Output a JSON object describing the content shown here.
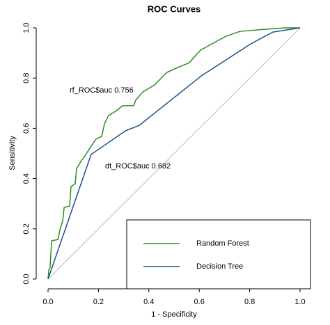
{
  "chart_data": {
    "type": "line",
    "title": "ROC Curves",
    "x_label": "1 - Specificity",
    "y_label": "Sensitivity",
    "xlim": [
      0,
      1
    ],
    "ylim": [
      0,
      1
    ],
    "xticks": [
      {
        "value": 0,
        "label": "0.0"
      },
      0.2,
      0.4,
      0.6,
      0.8,
      {
        "value": 1,
        "label": "1.0"
      }
    ],
    "yticks": [
      {
        "value": 0,
        "label": "0.0"
      },
      0.2,
      0.4,
      0.6,
      0.8,
      {
        "value": 1,
        "label": "1.0"
      }
    ],
    "annotations": [
      {
        "text": "rf_ROC$auc  0.756",
        "color": "#2e8b22"
      },
      {
        "text": "dt_ROC$auc  0.682",
        "color": "#1f4e8c"
      }
    ],
    "series": [
      {
        "name": "Random Forest",
        "color": "#2e8b22",
        "x": [
          0,
          0.003,
          0.008,
          0.014,
          0.04,
          0.047,
          0.058,
          0.064,
          0.086,
          0.091,
          0.108,
          0.113,
          0.13,
          0.146,
          0.168,
          0.19,
          0.213,
          0.224,
          0.24,
          0.268,
          0.296,
          0.34,
          0.348,
          0.376,
          0.423,
          0.472,
          0.522,
          0.56,
          0.605,
          0.666,
          0.707,
          0.762,
          0.859,
          0.942,
          1
        ],
        "values": [
          0,
          0.036,
          0.044,
          0.152,
          0.158,
          0.197,
          0.23,
          0.285,
          0.291,
          0.368,
          0.38,
          0.438,
          0.468,
          0.49,
          0.524,
          0.557,
          0.568,
          0.618,
          0.651,
          0.668,
          0.69,
          0.69,
          0.712,
          0.745,
          0.773,
          0.823,
          0.845,
          0.861,
          0.911,
          0.945,
          0.967,
          0.986,
          0.994,
          1,
          1
        ]
      },
      {
        "name": "Decision Tree",
        "color": "#1f4e8c",
        "x": [
          0,
          0.171,
          0.307,
          0.362,
          0.61,
          0.804,
          0.892,
          1
        ],
        "values": [
          0,
          0.496,
          0.59,
          0.612,
          0.81,
          0.936,
          0.983,
          1
        ]
      }
    ]
  }
}
